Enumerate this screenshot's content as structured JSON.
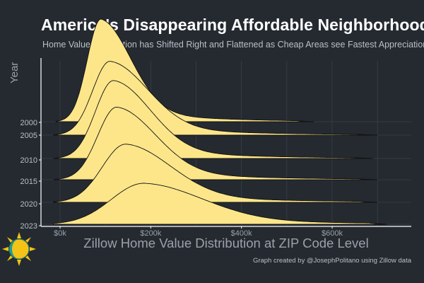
{
  "chart_data": {
    "type": "ridgeline",
    "title": "America's Disappearing Affordable Neighborhoods",
    "subtitle": "Home Value Distribution has Shifted Right and Flattened as Cheap Areas see Fastest Appreciation",
    "xlabel": "Zillow Home Value Distribution at ZIP Code Level",
    "ylabel": "Year",
    "x_ticks": [
      "$0k",
      "$200k",
      "$400k",
      "$600k"
    ],
    "x_tick_values": [
      0,
      200,
      400,
      600
    ],
    "xlim": [
      -15,
      720
    ],
    "y_ticks": [
      "2000",
      "2005",
      "2010",
      "2015",
      "2020",
      "2023"
    ],
    "fill_color": "#fde68a",
    "line_color": "#111111",
    "grid": true,
    "series": [
      {
        "year": "2023",
        "peak": 185,
        "spread_left": 72,
        "spread_right": 130,
        "tail_end": 720,
        "height": 1.0
      },
      {
        "year": "2020",
        "peak": 145,
        "spread_left": 52,
        "spread_right": 100,
        "tail_end": 700,
        "height": 1.42
      },
      {
        "year": "2015",
        "peak": 125,
        "spread_left": 42,
        "spread_right": 86,
        "tail_end": 700,
        "height": 1.77
      },
      {
        "year": "2010",
        "peak": 118,
        "spread_left": 40,
        "spread_right": 82,
        "tail_end": 690,
        "height": 1.9
      },
      {
        "year": "2005",
        "peak": 110,
        "spread_left": 38,
        "spread_right": 84,
        "tail_end": 700,
        "height": 1.8
      },
      {
        "year": "2000",
        "peak": 90,
        "spread_left": 30,
        "spread_right": 66,
        "tail_end": 560,
        "height": 2.5
      }
    ]
  },
  "credit": "Graph created by @JosephPolitano using Zillow data"
}
